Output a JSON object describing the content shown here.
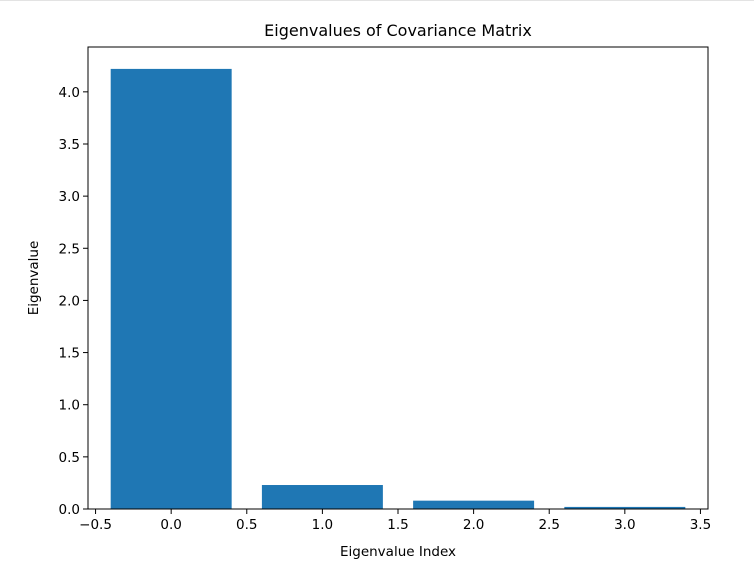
{
  "chart_data": {
    "type": "bar",
    "title": "Eigenvalues of Covariance Matrix",
    "xlabel": "Eigenvalue Index",
    "ylabel": "Eigenvalue",
    "x": [
      0,
      1,
      2,
      3
    ],
    "values": [
      4.22,
      0.23,
      0.08,
      0.02
    ],
    "bar_width": 0.8,
    "bar_color": "#1f77b4",
    "xlim": [
      -0.55,
      3.55
    ],
    "ylim": [
      0,
      4.43
    ],
    "xticks": [
      -0.5,
      0.0,
      0.5,
      1.0,
      1.5,
      2.0,
      2.5,
      3.0,
      3.5
    ],
    "xtick_labels": [
      "−0.5",
      "0.0",
      "0.5",
      "1.0",
      "1.5",
      "2.0",
      "2.5",
      "3.0",
      "3.5"
    ],
    "yticks": [
      0.0,
      0.5,
      1.0,
      1.5,
      2.0,
      2.5,
      3.0,
      3.5,
      4.0
    ],
    "ytick_labels": [
      "0.0",
      "0.5",
      "1.0",
      "1.5",
      "2.0",
      "2.5",
      "3.0",
      "3.5",
      "4.0"
    ],
    "grid": false,
    "legend": "none"
  }
}
